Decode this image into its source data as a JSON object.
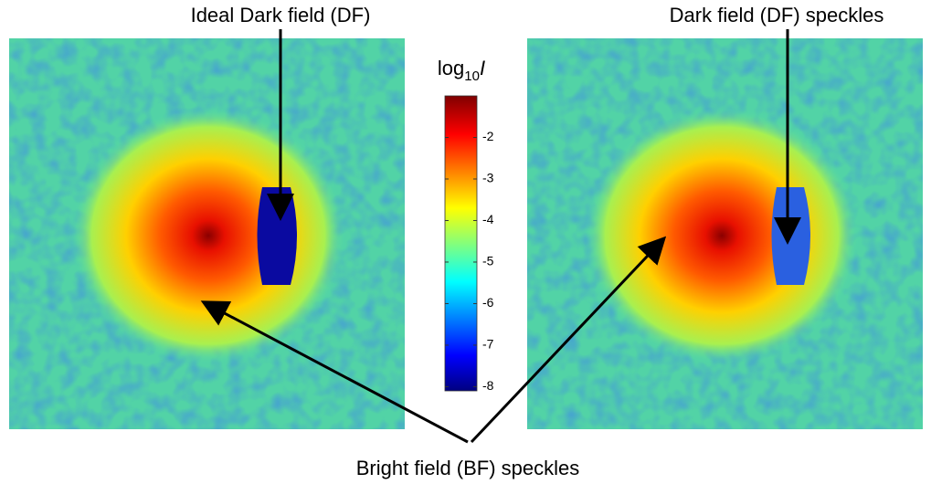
{
  "labels": {
    "ideal_df": "Ideal Dark field (DF)",
    "df_speckles": "Dark field (DF) speckles",
    "bf_speckles": "Bright field (BF) speckles"
  },
  "colorbar": {
    "title_base": "log",
    "title_sub": "10",
    "title_var": "I",
    "lim": [
      -1,
      -8.1
    ],
    "ticks": [
      -2,
      -3,
      -4,
      -5,
      -6,
      -7,
      -8
    ]
  }
}
